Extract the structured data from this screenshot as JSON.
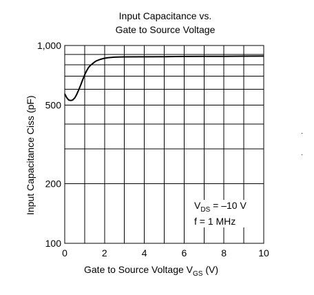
{
  "title_line1": "Input Capacitance vs.",
  "title_line2": "Gate to Source Voltage",
  "annotation": {
    "vds_v": "V",
    "vds_sub": "DS",
    "vds_rest": " = –10 V",
    "freq": "f = 1 MHz"
  },
  "xlabel": {
    "main": "Gate to Source Voltage  V",
    "sub": "GS",
    "unit": "  (V)"
  },
  "chart_data": {
    "type": "line",
    "title": "Input Capacitance vs. Gate to Source Voltage",
    "xlabel": "Gate to Source Voltage  VGS  (V)",
    "ylabel": "Input Capacitance  Ciss  (pF)",
    "xlim": [
      0,
      10
    ],
    "ylim": [
      100,
      1000
    ],
    "yscale": "log",
    "xticks": [
      0,
      2,
      4,
      6,
      8,
      10
    ],
    "xtick_labels": [
      "0",
      "2",
      "4",
      "6",
      "8",
      "10"
    ],
    "yticks": [
      100,
      200,
      500,
      1000
    ],
    "ytick_labels": [
      "100",
      "200",
      "500",
      "1,000"
    ],
    "grid": true,
    "series": [
      {
        "x": [
          0,
          0.1,
          0.2,
          0.3,
          0.4,
          0.5,
          0.6,
          0.7,
          0.8,
          0.9,
          1.0,
          1.1,
          1.2,
          1.3,
          1.4,
          1.5,
          1.6,
          1.8,
          2.0,
          2.2,
          2.5,
          3.0,
          4.0,
          5.0,
          6.0,
          7.0,
          8.0,
          9.0,
          10.0
        ],
        "y": [
          570,
          545,
          530,
          527,
          530,
          543,
          565,
          595,
          630,
          670,
          710,
          745,
          775,
          795,
          810,
          825,
          837,
          852,
          862,
          868,
          873,
          876,
          877,
          878,
          880,
          881,
          882,
          883,
          884
        ]
      }
    ]
  }
}
